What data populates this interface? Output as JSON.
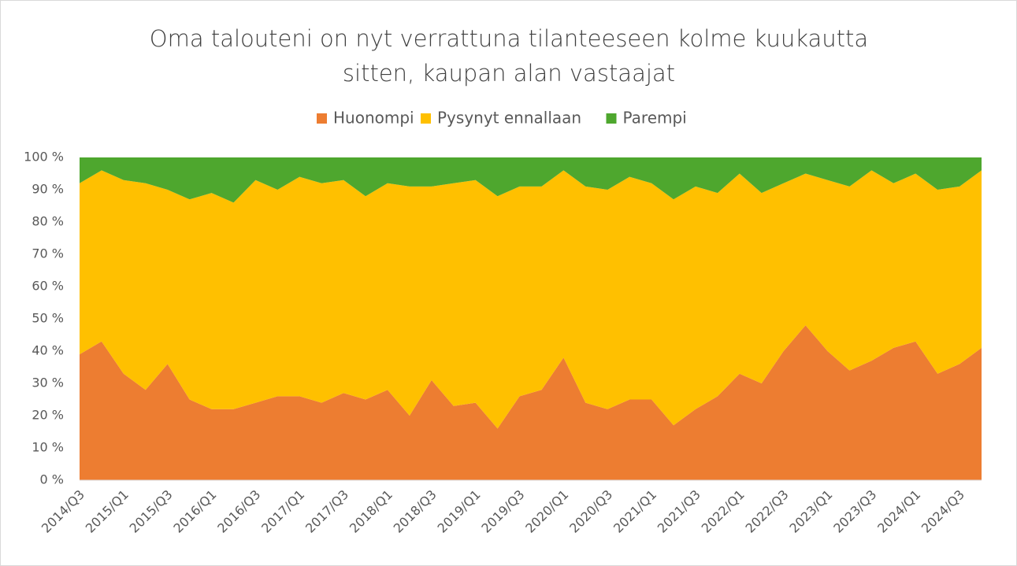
{
  "chart_data": {
    "type": "stacked_area",
    "title": "Oma talouteni on nyt verrattuna tilanteeseen kolme kuukautta sitten, kaupan alan vastaajat",
    "categories": [
      "2014/Q3",
      null,
      "2015/Q1",
      null,
      "2015/Q3",
      null,
      "2016/Q1",
      null,
      "2016/Q3",
      null,
      "2017/Q1",
      null,
      "2017/Q3",
      null,
      "2018/Q1",
      null,
      "2018/Q3",
      null,
      "2019/Q1",
      null,
      "2019/Q3",
      null,
      "2020/Q1",
      null,
      "2020/Q3",
      null,
      "2021/Q1",
      null,
      "2021/Q3",
      null,
      "2022/Q1",
      null,
      "2022/Q3",
      null,
      "2023/Q1",
      null,
      "2023/Q3",
      null,
      "2024/Q1",
      null,
      "2024/Q3",
      null
    ],
    "series": [
      {
        "name": "Huonompi",
        "color": "#ed7d31",
        "values": [
          39,
          43,
          33,
          28,
          36,
          25,
          22,
          22,
          24,
          26,
          26,
          24,
          27,
          25,
          28,
          20,
          31,
          23,
          24,
          16,
          26,
          28,
          38,
          24,
          22,
          25,
          25,
          17,
          22,
          26,
          33,
          30,
          40,
          48,
          40,
          34,
          37,
          41,
          43,
          33,
          36,
          41
        ]
      },
      {
        "name": "Pysynyt ennallaan",
        "color": "#ffc000",
        "values": [
          53,
          53,
          60,
          64,
          54,
          62,
          67,
          64,
          69,
          64,
          68,
          68,
          66,
          63,
          64,
          71,
          60,
          69,
          69,
          72,
          65,
          63,
          58,
          67,
          68,
          69,
          67,
          70,
          69,
          63,
          62,
          59,
          52,
          47,
          53,
          57,
          59,
          51,
          52,
          57,
          55,
          55
        ]
      },
      {
        "name": "Parempi",
        "color": "#4ea72e",
        "values": [
          8,
          4,
          7,
          8,
          10,
          13,
          11,
          14,
          7,
          10,
          6,
          8,
          7,
          12,
          8,
          9,
          9,
          8,
          7,
          12,
          9,
          9,
          4,
          9,
          10,
          6,
          8,
          13,
          9,
          11,
          5,
          11,
          8,
          5,
          7,
          9,
          4,
          8,
          5,
          10,
          9,
          4
        ]
      }
    ],
    "ylim": [
      0,
      100
    ],
    "yticks": [
      {
        "value": 0,
        "label": "0 %"
      },
      {
        "value": 10,
        "label": "10 %"
      },
      {
        "value": 20,
        "label": "20 %"
      },
      {
        "value": 30,
        "label": "30 %"
      },
      {
        "value": 40,
        "label": "40 %"
      },
      {
        "value": 50,
        "label": "50 %"
      },
      {
        "value": 60,
        "label": "60 %"
      },
      {
        "value": 70,
        "label": "70 %"
      },
      {
        "value": 80,
        "label": "80 %"
      },
      {
        "value": 90,
        "label": "90 %"
      },
      {
        "value": 100,
        "label": "100 %"
      }
    ],
    "grid": false,
    "legend": "top"
  }
}
